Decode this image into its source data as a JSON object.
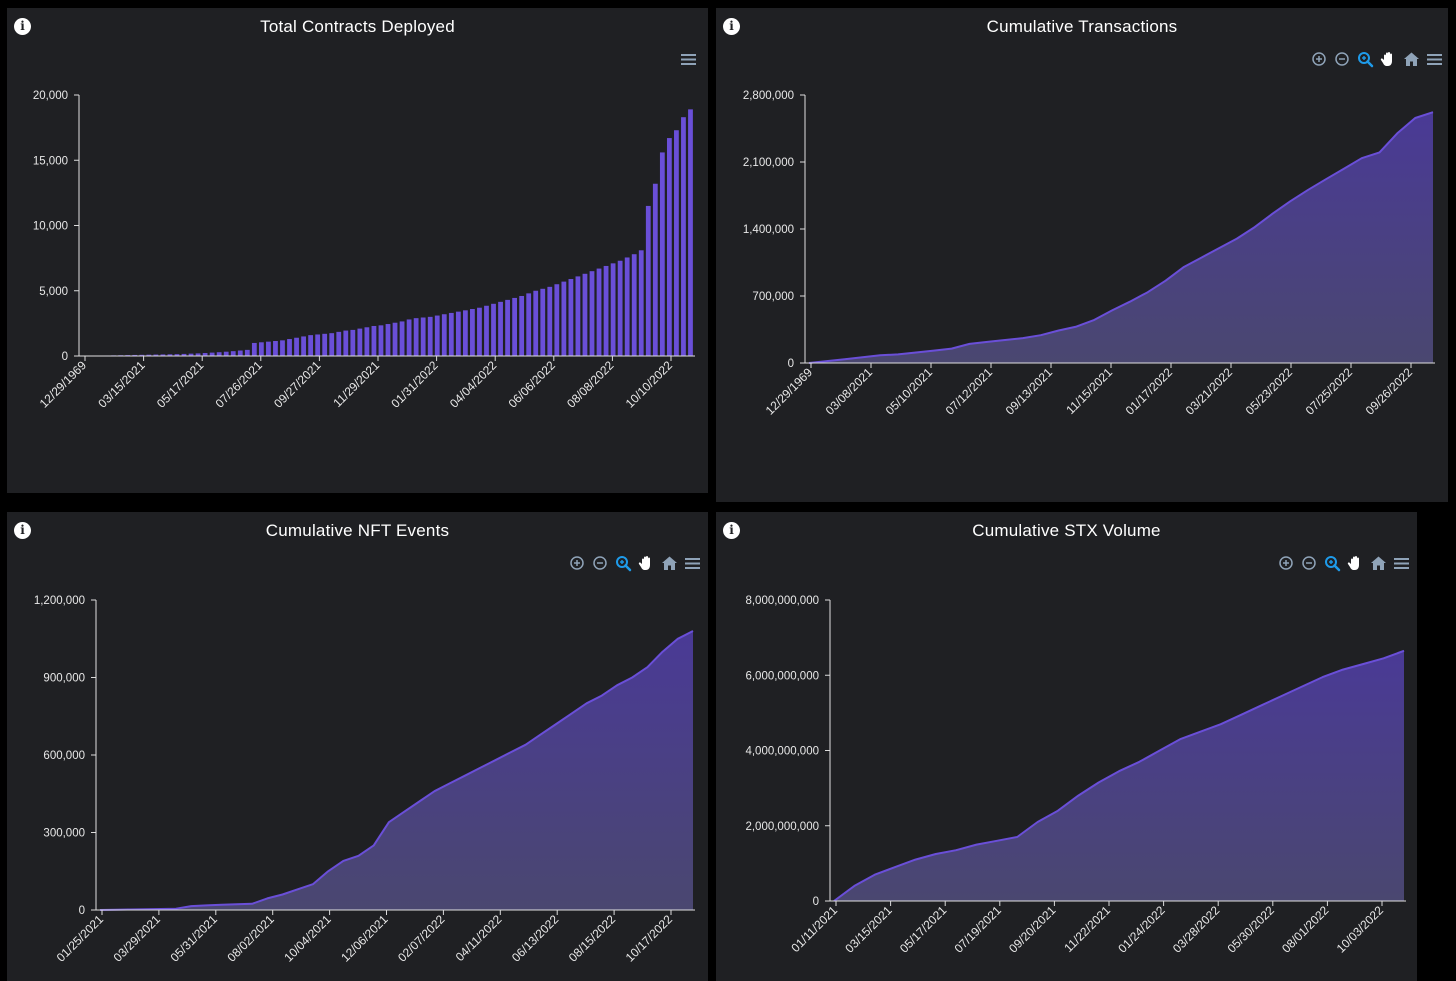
{
  "colors": {
    "panel_bg": "#1f2023",
    "page_bg": "#000000",
    "series": "#6a4fd8",
    "area_top": "#4a3a96",
    "area_bottom": "#4a4770",
    "text": "#ffffff",
    "toolbar_icon": "#8fa3b8",
    "toolbar_active": "#1e9bea"
  },
  "chart_data": [
    {
      "id": "contracts",
      "type": "bar",
      "title": "Total Contracts Deployed",
      "ylim": [
        0,
        20000
      ],
      "yticks": [
        0,
        5000,
        10000,
        15000,
        20000
      ],
      "ytick_labels": [
        "0",
        "5,000",
        "10,000",
        "15,000",
        "20,000"
      ],
      "xtick_labels": [
        "12/29/1969",
        "03/15/2021",
        "05/17/2021",
        "07/26/2021",
        "09/27/2021",
        "11/29/2021",
        "01/31/2022",
        "04/04/2022",
        "06/06/2022",
        "08/08/2022",
        "10/10/2022"
      ],
      "values": [
        10,
        20,
        30,
        40,
        50,
        60,
        70,
        80,
        90,
        100,
        110,
        120,
        130,
        140,
        160,
        180,
        200,
        230,
        260,
        290,
        330,
        370,
        420,
        470,
        1000,
        1050,
        1100,
        1150,
        1200,
        1300,
        1400,
        1500,
        1600,
        1650,
        1700,
        1750,
        1850,
        1950,
        2000,
        2100,
        2200,
        2300,
        2350,
        2450,
        2550,
        2650,
        2800,
        2900,
        2950,
        3000,
        3100,
        3200,
        3300,
        3400,
        3500,
        3600,
        3700,
        3850,
        4000,
        4150,
        4300,
        4450,
        4600,
        4800,
        5000,
        5150,
        5300,
        5500,
        5700,
        5900,
        6100,
        6300,
        6500,
        6700,
        6900,
        7100,
        7300,
        7550,
        7800,
        8100,
        11500,
        13200,
        15600,
        16700,
        17300,
        18300,
        18900
      ],
      "toolbar": [
        "menu-icon"
      ]
    },
    {
      "id": "tx",
      "type": "area",
      "title": "Cumulative Transactions",
      "ylim": [
        0,
        2800000
      ],
      "yticks": [
        0,
        700000,
        1400000,
        2100000,
        2800000
      ],
      "ytick_labels": [
        "0",
        "700,000",
        "1,400,000",
        "2,100,000",
        "2,800,000"
      ],
      "xtick_labels": [
        "12/29/1969",
        "03/08/2021",
        "05/10/2021",
        "07/12/2021",
        "09/13/2021",
        "11/15/2021",
        "01/17/2022",
        "03/21/2022",
        "05/23/2022",
        "07/25/2022",
        "09/26/2022"
      ],
      "values": [
        0,
        20000,
        40000,
        60000,
        80000,
        90000,
        110000,
        130000,
        150000,
        200000,
        220000,
        240000,
        260000,
        290000,
        340000,
        380000,
        450000,
        550000,
        640000,
        740000,
        860000,
        1000000,
        1100000,
        1200000,
        1300000,
        1420000,
        1560000,
        1690000,
        1810000,
        1920000,
        2030000,
        2140000,
        2200000,
        2400000,
        2560000,
        2620000
      ],
      "toolbar": [
        "zoom-in-icon",
        "zoom-out-icon",
        "zoom-select-icon",
        "pan-icon",
        "home-icon",
        "menu-icon"
      ]
    },
    {
      "id": "nft",
      "type": "area",
      "title": "Cumulative NFT Events",
      "ylim": [
        0,
        1200000
      ],
      "yticks": [
        0,
        300000,
        600000,
        900000,
        1200000
      ],
      "ytick_labels": [
        "0",
        "300,000",
        "600,000",
        "900,000",
        "1,200,000"
      ],
      "xtick_labels": [
        "01/25/2021",
        "03/29/2021",
        "05/31/2021",
        "08/02/2021",
        "10/04/2021",
        "12/06/2021",
        "02/07/2022",
        "04/11/2022",
        "06/13/2022",
        "08/15/2022",
        "10/17/2022"
      ],
      "values": [
        0,
        1000,
        2000,
        3000,
        4000,
        5000,
        15000,
        18000,
        20000,
        22000,
        24000,
        45000,
        60000,
        80000,
        100000,
        150000,
        190000,
        210000,
        250000,
        340000,
        380000,
        420000,
        460000,
        490000,
        520000,
        550000,
        580000,
        610000,
        640000,
        680000,
        720000,
        760000,
        800000,
        830000,
        870000,
        900000,
        940000,
        1000000,
        1050000,
        1080000
      ],
      "toolbar": [
        "zoom-in-icon",
        "zoom-out-icon",
        "zoom-select-icon",
        "pan-icon",
        "home-icon",
        "menu-icon"
      ]
    },
    {
      "id": "stx",
      "type": "area",
      "title": "Cumulative STX Volume",
      "ylim": [
        0,
        8000000000
      ],
      "yticks": [
        0,
        2000000000,
        4000000000,
        6000000000,
        8000000000
      ],
      "ytick_labels": [
        "0",
        "2,000,000,000",
        "4,000,000,000",
        "6,000,000,000",
        "8,000,000,000"
      ],
      "xtick_labels": [
        "01/11/2021",
        "03/15/2021",
        "05/17/2021",
        "07/19/2021",
        "09/20/2021",
        "11/22/2021",
        "01/24/2022",
        "03/28/2022",
        "05/30/2022",
        "08/01/2022",
        "10/03/2022"
      ],
      "values": [
        0,
        400000000,
        700000000,
        900000000,
        1100000000,
        1250000000,
        1350000000,
        1500000000,
        1600000000,
        1700000000,
        2100000000,
        2400000000,
        2800000000,
        3150000000,
        3450000000,
        3700000000,
        4000000000,
        4300000000,
        4500000000,
        4700000000,
        4950000000,
        5200000000,
        5450000000,
        5700000000,
        5950000000,
        6150000000,
        6300000000,
        6450000000,
        6650000000
      ],
      "toolbar": [
        "zoom-in-icon",
        "zoom-out-icon",
        "zoom-select-icon",
        "pan-icon",
        "home-icon",
        "menu-icon"
      ]
    }
  ]
}
